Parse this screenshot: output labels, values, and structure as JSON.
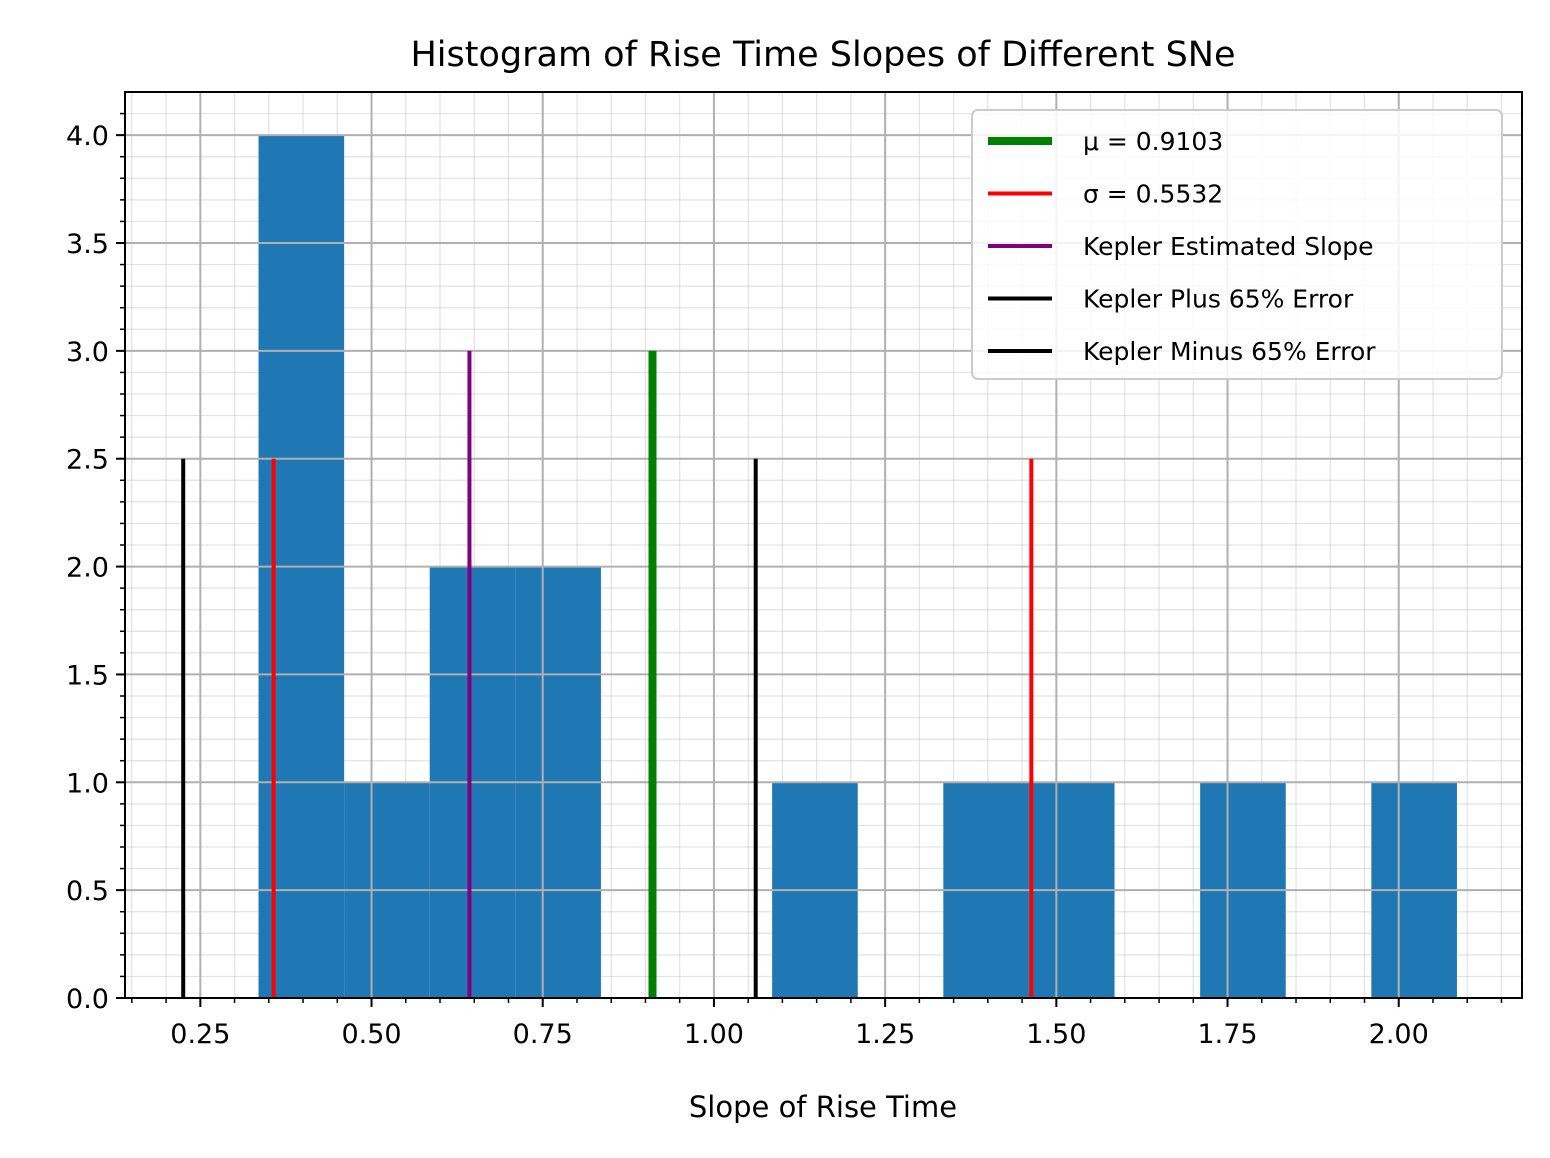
{
  "chart_data": {
    "type": "bar",
    "title": "Histogram of Rise Time Slopes of Different SNe",
    "xlabel": "Slope of Rise Time",
    "ylabel": "",
    "xlim": [
      0.14,
      2.18
    ],
    "ylim": [
      0,
      4.2
    ],
    "grid": true,
    "minor_grid": true,
    "legend_position": "top-right",
    "x_ticks": [
      0.25,
      0.5,
      0.75,
      1.0,
      1.25,
      1.5,
      1.75,
      2.0
    ],
    "x_tick_labels": [
      "0.25",
      "0.50",
      "0.75",
      "1.00",
      "1.25",
      "1.50",
      "1.75",
      "2.00"
    ],
    "y_ticks": [
      0,
      0.5,
      1.0,
      1.5,
      2.0,
      2.5,
      3.0,
      3.5,
      4.0
    ],
    "y_tick_labels": [
      "0.0",
      "0.5",
      "1.0",
      "1.5",
      "2.0",
      "2.5",
      "3.0",
      "3.5",
      "4.0"
    ],
    "bar_color": "#1f77b4",
    "bins": [
      {
        "x0": 0.335,
        "x1": 0.46,
        "count": 4
      },
      {
        "x0": 0.46,
        "x1": 0.585,
        "count": 1
      },
      {
        "x0": 0.585,
        "x1": 0.71,
        "count": 2
      },
      {
        "x0": 0.71,
        "x1": 0.835,
        "count": 2
      },
      {
        "x0": 1.085,
        "x1": 1.21,
        "count": 1
      },
      {
        "x0": 1.335,
        "x1": 1.46,
        "count": 1
      },
      {
        "x0": 1.46,
        "x1": 1.585,
        "count": 1
      },
      {
        "x0": 1.71,
        "x1": 1.835,
        "count": 1
      },
      {
        "x0": 1.96,
        "x1": 2.085,
        "count": 1
      }
    ],
    "vertical_lines": [
      {
        "x": 0.9103,
        "ymax": 3.0,
        "color": "#008000",
        "label": "μ = 0.9103"
      },
      {
        "x": 0.3571,
        "ymax": 2.5,
        "color": "#ff0000",
        "label": "σ = 0.5532"
      },
      {
        "x": 1.4635,
        "ymax": 2.5,
        "color": "#ff0000",
        "label": ""
      },
      {
        "x": 0.643,
        "ymax": 3.0,
        "color": "#800080",
        "label": "Kepler Estimated Slope"
      },
      {
        "x": 1.061,
        "ymax": 2.5,
        "color": "#000000",
        "label": "Kepler Plus 65% Error"
      },
      {
        "x": 0.225,
        "ymax": 2.5,
        "color": "#000000",
        "label": "Kepler Minus 65% Error"
      }
    ],
    "legend": [
      {
        "label": "μ = 0.9103",
        "color": "#008000",
        "thick": true
      },
      {
        "label": "σ = 0.5532",
        "color": "#ff0000",
        "thick": false
      },
      {
        "label": "Kepler Estimated Slope",
        "color": "#800080",
        "thick": false
      },
      {
        "label": "Kepler Plus 65% Error",
        "color": "#000000",
        "thick": false
      },
      {
        "label": "Kepler Minus 65% Error",
        "color": "#000000",
        "thick": false
      }
    ]
  }
}
